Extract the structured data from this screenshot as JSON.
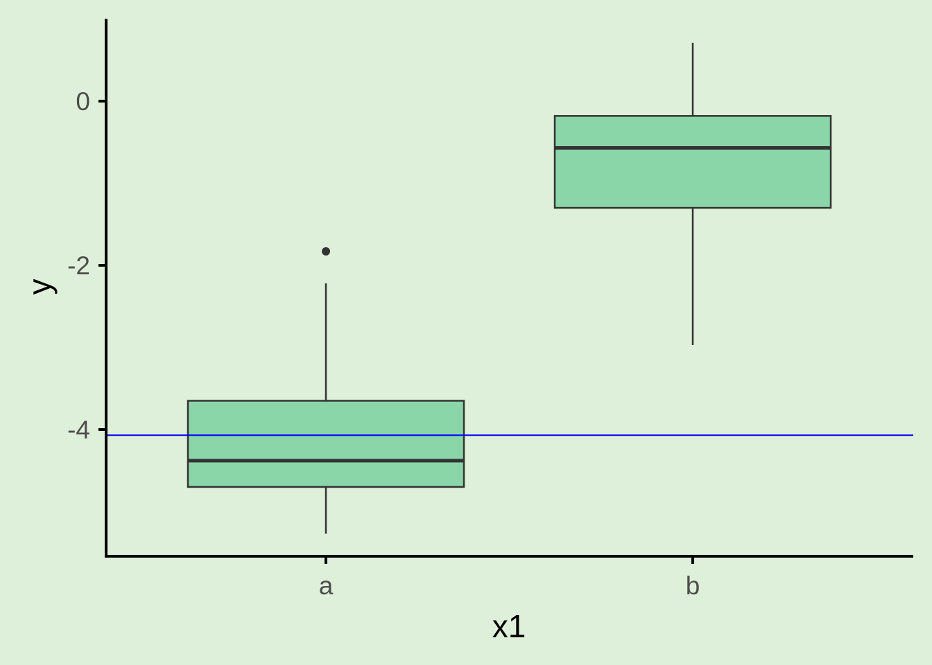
{
  "chart_data": {
    "type": "boxplot",
    "title": "",
    "xlabel": "x1",
    "ylabel": "y",
    "categories": [
      "a",
      "b"
    ],
    "boxes": [
      {
        "category": "a",
        "whisker_low": -5.27,
        "q1": -4.7,
        "median": -4.38,
        "q3": -3.65,
        "whisker_high": -2.22,
        "outliers": [
          -1.83
        ]
      },
      {
        "category": "b",
        "whisker_low": -2.97,
        "q1": -1.3,
        "median": -0.57,
        "q3": -0.18,
        "whisker_high": 0.71,
        "outliers": []
      }
    ],
    "y_ticks": [
      {
        "value": 0,
        "label": "0"
      },
      {
        "value": -2,
        "label": "-2"
      },
      {
        "value": -4,
        "label": "-4"
      }
    ],
    "reference_line": {
      "y": -4.07,
      "color": "#0000ff"
    },
    "ylim": [
      -5.55,
      1.0
    ],
    "grid": false,
    "legend": "none",
    "colors": {
      "background": "#dff0da",
      "box_fill": "#8ad6a8",
      "box_stroke": "#333333",
      "axis": "#000000",
      "tick_label": "#4d4d4d"
    }
  }
}
